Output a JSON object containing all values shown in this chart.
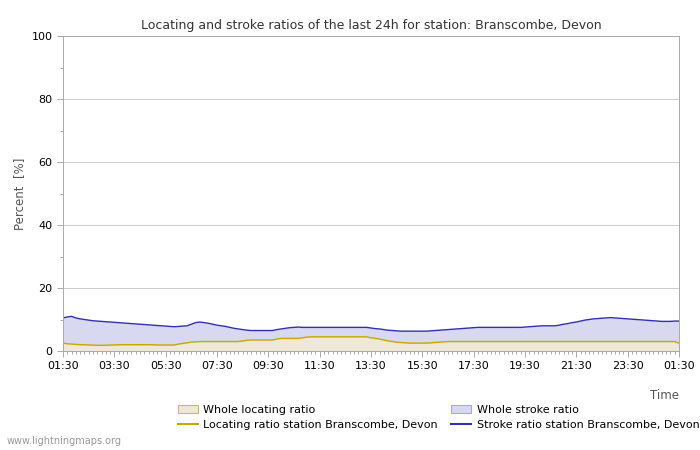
{
  "title": "Locating and stroke ratios of the last 24h for station: Branscombe, Devon",
  "ylabel": "Percent  [%]",
  "xlabel": "Time",
  "watermark": "www.lightningmaps.org",
  "ylim": [
    0,
    100
  ],
  "y_major_ticks": [
    0,
    20,
    40,
    60,
    80,
    100
  ],
  "y_minor_ticks": [
    10,
    30,
    50,
    70,
    90
  ],
  "x_tick_labels": [
    "01:30",
    "03:30",
    "05:30",
    "07:30",
    "09:30",
    "11:30",
    "13:30",
    "15:30",
    "17:30",
    "19:30",
    "21:30",
    "23:30",
    "01:30"
  ],
  "bg_color": "#ffffff",
  "plot_bg_color": "#ffffff",
  "grid_color": "#cccccc",
  "whole_locating_fill_color": "#ede8d8",
  "whole_locating_line_color": "#c8b878",
  "whole_stroke_fill_color": "#d8d8f0",
  "whole_stroke_line_color": "#a8a8e0",
  "station_locating_line_color": "#c8a800",
  "station_stroke_line_color": "#3030b0",
  "n_points": 145,
  "whole_locating_ratio": [
    2.5,
    2.3,
    2.2,
    2.1,
    2.0,
    2.0,
    1.9,
    1.9,
    1.8,
    1.8,
    1.8,
    1.9,
    1.9,
    2.0,
    2.0,
    2.0,
    2.0,
    2.0,
    2.0,
    2.0,
    2.0,
    2.0,
    1.9,
    1.9,
    1.9,
    1.9,
    1.9,
    2.2,
    2.4,
    2.6,
    2.8,
    2.9,
    3.0,
    3.0,
    3.0,
    3.0,
    3.0,
    3.0,
    3.0,
    3.0,
    3.0,
    3.0,
    3.2,
    3.4,
    3.5,
    3.5,
    3.5,
    3.5,
    3.5,
    3.5,
    3.8,
    4.0,
    4.0,
    4.0,
    4.0,
    4.0,
    4.2,
    4.4,
    4.5,
    4.5,
    4.5,
    4.5,
    4.5,
    4.5,
    4.5,
    4.5,
    4.5,
    4.5,
    4.5,
    4.5,
    4.5,
    4.5,
    4.2,
    4.0,
    3.8,
    3.5,
    3.2,
    3.0,
    2.8,
    2.7,
    2.6,
    2.5,
    2.5,
    2.5,
    2.5,
    2.5,
    2.6,
    2.7,
    2.8,
    2.9,
    3.0,
    3.0,
    3.0,
    3.0,
    3.0,
    3.0,
    3.0,
    3.0,
    3.0,
    3.0,
    3.0,
    3.0,
    3.0,
    3.0,
    3.0,
    3.0,
    3.0,
    3.0,
    3.0,
    3.0,
    3.0,
    3.0,
    3.0,
    3.0,
    3.0,
    3.0,
    3.0,
    3.0,
    3.0,
    3.0,
    3.0,
    3.0,
    3.0,
    3.0,
    3.0,
    3.0,
    3.0,
    3.0,
    3.0,
    3.0,
    3.0,
    3.0,
    3.0,
    3.0,
    3.0,
    3.0,
    3.0,
    3.0,
    3.0,
    3.0,
    3.0,
    3.0,
    3.0,
    3.0,
    2.5
  ],
  "whole_stroke_ratio": [
    10.5,
    10.8,
    11.0,
    10.5,
    10.2,
    10.0,
    9.8,
    9.6,
    9.5,
    9.4,
    9.3,
    9.2,
    9.1,
    9.0,
    8.9,
    8.8,
    8.7,
    8.6,
    8.5,
    8.4,
    8.3,
    8.2,
    8.1,
    8.0,
    7.9,
    7.8,
    7.7,
    7.8,
    7.9,
    8.0,
    8.5,
    9.0,
    9.2,
    9.0,
    8.8,
    8.5,
    8.2,
    8.0,
    7.8,
    7.5,
    7.2,
    7.0,
    6.8,
    6.6,
    6.5,
    6.5,
    6.5,
    6.5,
    6.5,
    6.5,
    6.8,
    7.0,
    7.2,
    7.4,
    7.5,
    7.6,
    7.5,
    7.5,
    7.5,
    7.5,
    7.5,
    7.5,
    7.5,
    7.5,
    7.5,
    7.5,
    7.5,
    7.5,
    7.5,
    7.5,
    7.5,
    7.5,
    7.3,
    7.1,
    7.0,
    6.8,
    6.6,
    6.5,
    6.4,
    6.3,
    6.3,
    6.3,
    6.3,
    6.3,
    6.3,
    6.3,
    6.4,
    6.5,
    6.6,
    6.7,
    6.8,
    6.9,
    7.0,
    7.1,
    7.2,
    7.3,
    7.4,
    7.5,
    7.5,
    7.5,
    7.5,
    7.5,
    7.5,
    7.5,
    7.5,
    7.5,
    7.5,
    7.5,
    7.6,
    7.7,
    7.8,
    7.9,
    8.0,
    8.0,
    8.0,
    8.0,
    8.2,
    8.5,
    8.7,
    9.0,
    9.2,
    9.5,
    9.8,
    10.0,
    10.2,
    10.3,
    10.4,
    10.5,
    10.6,
    10.5,
    10.4,
    10.3,
    10.2,
    10.1,
    10.0,
    9.9,
    9.8,
    9.7,
    9.6,
    9.5,
    9.4,
    9.4,
    9.4,
    9.5,
    9.5
  ],
  "station_locating": [
    2.5,
    2.3,
    2.2,
    2.1,
    2.0,
    2.0,
    1.9,
    1.9,
    1.8,
    1.8,
    1.8,
    1.9,
    1.9,
    2.0,
    2.0,
    2.0,
    2.0,
    2.0,
    2.0,
    2.0,
    2.0,
    2.0,
    1.9,
    1.9,
    1.9,
    1.9,
    1.9,
    2.2,
    2.4,
    2.6,
    2.8,
    2.9,
    3.0,
    3.0,
    3.0,
    3.0,
    3.0,
    3.0,
    3.0,
    3.0,
    3.0,
    3.0,
    3.2,
    3.4,
    3.5,
    3.5,
    3.5,
    3.5,
    3.5,
    3.5,
    3.8,
    4.0,
    4.0,
    4.0,
    4.0,
    4.0,
    4.2,
    4.4,
    4.5,
    4.5,
    4.5,
    4.5,
    4.5,
    4.5,
    4.5,
    4.5,
    4.5,
    4.5,
    4.5,
    4.5,
    4.5,
    4.5,
    4.2,
    4.0,
    3.8,
    3.5,
    3.2,
    3.0,
    2.8,
    2.7,
    2.6,
    2.5,
    2.5,
    2.5,
    2.5,
    2.5,
    2.6,
    2.7,
    2.8,
    2.9,
    3.0,
    3.0,
    3.0,
    3.0,
    3.0,
    3.0,
    3.0,
    3.0,
    3.0,
    3.0,
    3.0,
    3.0,
    3.0,
    3.0,
    3.0,
    3.0,
    3.0,
    3.0,
    3.0,
    3.0,
    3.0,
    3.0,
    3.0,
    3.0,
    3.0,
    3.0,
    3.0,
    3.0,
    3.0,
    3.0,
    3.0,
    3.0,
    3.0,
    3.0,
    3.0,
    3.0,
    3.0,
    3.0,
    3.0,
    3.0,
    3.0,
    3.0,
    3.0,
    3.0,
    3.0,
    3.0,
    3.0,
    3.0,
    3.0,
    3.0,
    3.0,
    3.0,
    3.0,
    3.0,
    2.5
  ],
  "station_stroke": [
    10.5,
    10.8,
    11.0,
    10.5,
    10.2,
    10.0,
    9.8,
    9.6,
    9.5,
    9.4,
    9.3,
    9.2,
    9.1,
    9.0,
    8.9,
    8.8,
    8.7,
    8.6,
    8.5,
    8.4,
    8.3,
    8.2,
    8.1,
    8.0,
    7.9,
    7.8,
    7.7,
    7.8,
    7.9,
    8.0,
    8.5,
    9.0,
    9.2,
    9.0,
    8.8,
    8.5,
    8.2,
    8.0,
    7.8,
    7.5,
    7.2,
    7.0,
    6.8,
    6.6,
    6.5,
    6.5,
    6.5,
    6.5,
    6.5,
    6.5,
    6.8,
    7.0,
    7.2,
    7.4,
    7.5,
    7.6,
    7.5,
    7.5,
    7.5,
    7.5,
    7.5,
    7.5,
    7.5,
    7.5,
    7.5,
    7.5,
    7.5,
    7.5,
    7.5,
    7.5,
    7.5,
    7.5,
    7.3,
    7.1,
    7.0,
    6.8,
    6.6,
    6.5,
    6.4,
    6.3,
    6.3,
    6.3,
    6.3,
    6.3,
    6.3,
    6.3,
    6.4,
    6.5,
    6.6,
    6.7,
    6.8,
    6.9,
    7.0,
    7.1,
    7.2,
    7.3,
    7.4,
    7.5,
    7.5,
    7.5,
    7.5,
    7.5,
    7.5,
    7.5,
    7.5,
    7.5,
    7.5,
    7.5,
    7.6,
    7.7,
    7.8,
    7.9,
    8.0,
    8.0,
    8.0,
    8.0,
    8.2,
    8.5,
    8.7,
    9.0,
    9.2,
    9.5,
    9.8,
    10.0,
    10.2,
    10.3,
    10.4,
    10.5,
    10.6,
    10.5,
    10.4,
    10.3,
    10.2,
    10.1,
    10.0,
    9.9,
    9.8,
    9.7,
    9.6,
    9.5,
    9.4,
    9.4,
    9.4,
    9.5,
    9.5
  ],
  "legend_labels": [
    "Whole locating ratio",
    "Locating ratio station Branscombe, Devon",
    "Whole stroke ratio",
    "Stroke ratio station Branscombe, Devon"
  ]
}
